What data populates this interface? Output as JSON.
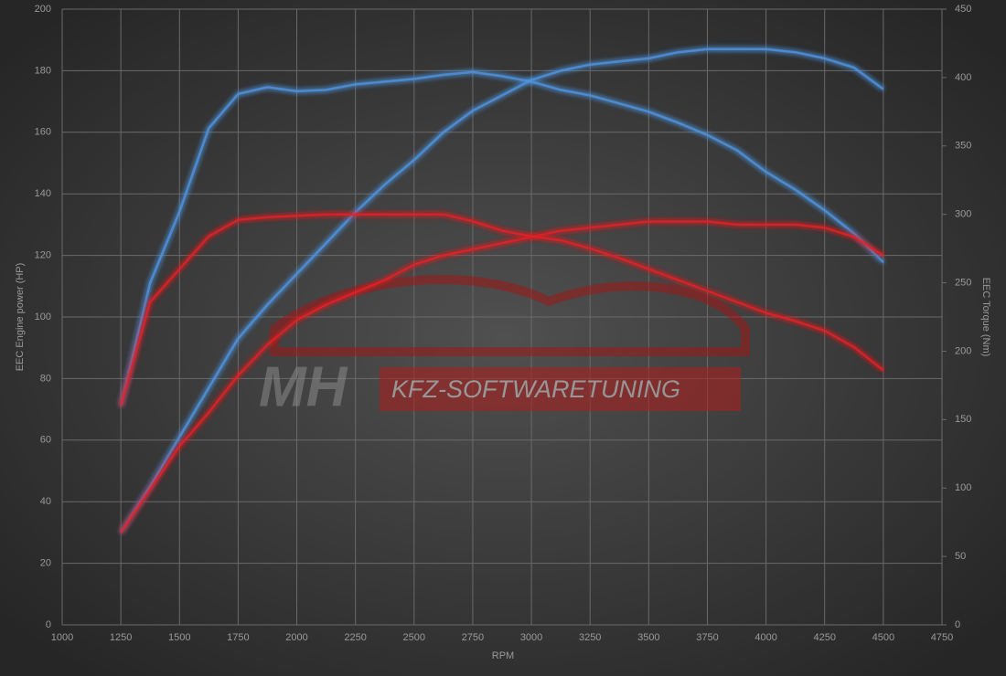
{
  "chart_data": {
    "type": "line",
    "xlabel": "RPM",
    "ylabel": "EEC Engine power (HP)",
    "y2label": "EEC Torque (Nm)",
    "annotations": [
      "MH",
      "KFZ-SOFTWARETUNING"
    ],
    "x": [
      1250,
      1375,
      1500,
      1625,
      1750,
      1875,
      2000,
      2125,
      2250,
      2375,
      2500,
      2625,
      2750,
      2875,
      3000,
      3125,
      3250,
      3375,
      3500,
      3625,
      3750,
      3875,
      4000,
      4125,
      4250,
      4375,
      4500
    ],
    "xlim": [
      1000,
      4750
    ],
    "xticks": [
      1000,
      1250,
      1500,
      1750,
      2000,
      2250,
      2500,
      2750,
      3000,
      3250,
      3500,
      3750,
      4000,
      4250,
      4500,
      4750
    ],
    "ylim": [
      0,
      200
    ],
    "yticks": [
      0,
      20,
      40,
      60,
      80,
      100,
      120,
      140,
      160,
      180,
      200
    ],
    "y2lim": [
      0,
      450
    ],
    "y2ticks": [
      0,
      50,
      100,
      150,
      200,
      250,
      300,
      350,
      400,
      450
    ],
    "grid": true,
    "series": [
      {
        "color": "#4f94e0",
        "axis": "y",
        "values": [
          30,
          45,
          61,
          77,
          93,
          104,
          114,
          124,
          134,
          143,
          151,
          160,
          167,
          172,
          177,
          180,
          182,
          183,
          184,
          186,
          187,
          187,
          187,
          186,
          184,
          181,
          174
        ]
      },
      {
        "color": "#4f94e0",
        "axis": "y2",
        "values": [
          160,
          250,
          302,
          363,
          388,
          393,
          390,
          391,
          395,
          397,
          399,
          402,
          404,
          401,
          397,
          391,
          387,
          381,
          375,
          367,
          358,
          347,
          331,
          318,
          303,
          286,
          265
        ]
      },
      {
        "color": "#e02028",
        "axis": "y",
        "values": [
          30,
          44,
          58,
          69,
          81,
          91,
          99,
          104,
          108,
          112,
          117,
          120,
          122,
          124,
          126,
          128,
          129,
          130,
          131,
          131,
          131,
          130,
          130,
          130,
          129,
          126,
          120
        ]
      },
      {
        "color": "#e02028",
        "axis": "y2",
        "values": [
          160,
          236,
          260,
          284,
          296,
          298,
          299,
          300,
          300,
          300,
          300,
          300,
          295,
          288,
          284,
          281,
          275,
          268,
          260,
          252,
          244,
          236,
          228,
          222,
          215,
          203,
          186
        ]
      }
    ]
  }
}
